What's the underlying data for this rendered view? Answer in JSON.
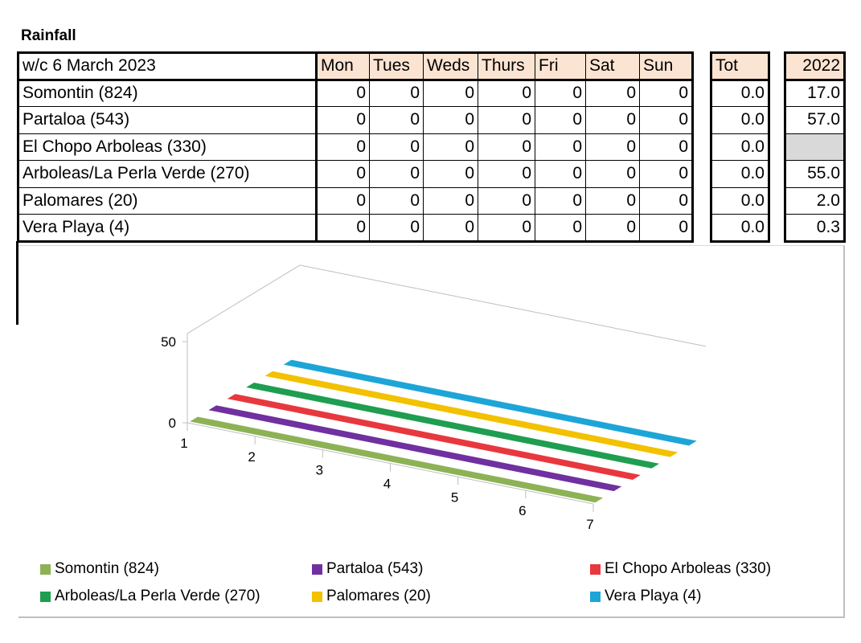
{
  "title": "Rainfall",
  "header": {
    "week": "w/c  6 March 2023",
    "days": [
      "Mon",
      "Tues",
      "Weds",
      "Thurs",
      "Fri",
      "Sat",
      "Sun"
    ],
    "total": "Tot",
    "previous": "2022"
  },
  "rows": [
    {
      "name": "Somontin (824)",
      "values": [
        "0",
        "0",
        "0",
        "0",
        "0",
        "0",
        "0"
      ],
      "total": "0.0",
      "previous": "17.0"
    },
    {
      "name": "Partaloa (543)",
      "values": [
        "0",
        "0",
        "0",
        "0",
        "0",
        "0",
        "0"
      ],
      "total": "0.0",
      "previous": "57.0"
    },
    {
      "name": "El Chopo Arboleas (330)",
      "values": [
        "0",
        "0",
        "0",
        "0",
        "0",
        "0",
        "0"
      ],
      "total": "0.0",
      "previous": ""
    },
    {
      "name": "Arboleas/La Perla Verde (270)",
      "values": [
        "0",
        "0",
        "0",
        "0",
        "0",
        "0",
        "0"
      ],
      "total": "0.0",
      "previous": "55.0"
    },
    {
      "name": "Palomares (20)",
      "values": [
        "0",
        "0",
        "0",
        "0",
        "0",
        "0",
        "0"
      ],
      "total": "0.0",
      "previous": "2.0"
    },
    {
      "name": "Vera Playa (4)",
      "values": [
        "0",
        "0",
        "0",
        "0",
        "0",
        "0",
        "0"
      ],
      "total": "0.0",
      "previous": "0.3"
    }
  ],
  "chart_data": {
    "type": "area",
    "x": [
      1,
      2,
      3,
      4,
      5,
      6,
      7
    ],
    "yticks": [
      "0",
      "50"
    ],
    "ylim": [
      0,
      50
    ],
    "series": [
      {
        "name": "Somontin (824)",
        "color": "#8db255",
        "values": [
          0,
          0,
          0,
          0,
          0,
          0,
          0
        ]
      },
      {
        "name": "Partaloa (543)",
        "color": "#7030a0",
        "values": [
          0,
          0,
          0,
          0,
          0,
          0,
          0
        ]
      },
      {
        "name": "El Chopo Arboleas (330)",
        "color": "#e8383d",
        "values": [
          0,
          0,
          0,
          0,
          0,
          0,
          0
        ]
      },
      {
        "name": "Arboleas/La Perla Verde (270)",
        "color": "#1e9e50",
        "values": [
          0,
          0,
          0,
          0,
          0,
          0,
          0
        ]
      },
      {
        "name": "Palomares (20)",
        "color": "#f2c100",
        "values": [
          0,
          0,
          0,
          0,
          0,
          0,
          0
        ]
      },
      {
        "name": "Vera Playa (4)",
        "color": "#1ea5d8",
        "values": [
          0,
          0,
          0,
          0,
          0,
          0,
          0
        ]
      }
    ],
    "legend_position": "bottom"
  }
}
